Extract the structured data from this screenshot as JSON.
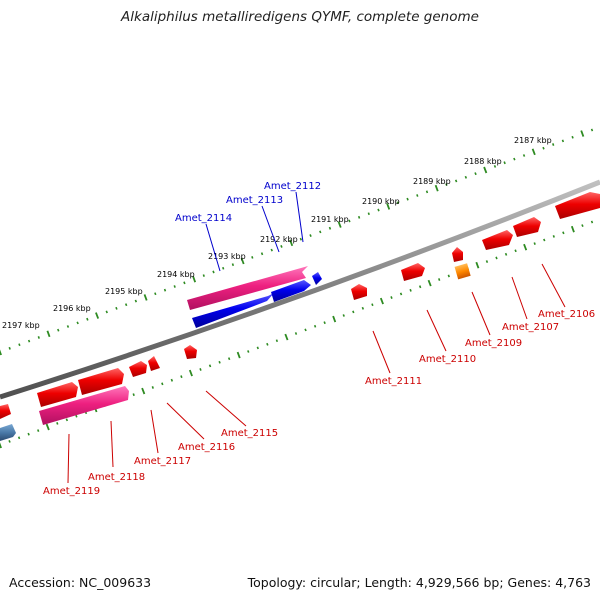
{
  "header": {
    "title": "Alkaliphilus metalliredigens QYMF, complete genome"
  },
  "footer": {
    "accession": "Accession: NC_009633",
    "summary": "Topology: circular; Length: 4,929,566 bp; Genes: 4,763"
  },
  "colors": {
    "backbone": "#808080",
    "tick": "#2e8b22",
    "forward_label": "#0000cc",
    "reverse_label": "#cc0000",
    "red": "#ee0000",
    "pink": "#ee2080",
    "blue": "#0000ee",
    "orange": "#ff8800",
    "steelblue": "#4a7aa8"
  },
  "ruler": {
    "major_ticks": [
      "2187 kbp",
      "2188 kbp",
      "2189 kbp",
      "2190 kbp",
      "2191 kbp",
      "2192 kbp",
      "2193 kbp",
      "2194 kbp",
      "2195 kbp",
      "2196 kbp",
      "2197 kbp"
    ]
  },
  "forward_genes": [
    {
      "label": "Amet_2112",
      "color": "pink"
    },
    {
      "label": "Amet_2113",
      "color": "blue"
    },
    {
      "label": "Amet_2114",
      "color": "blue"
    }
  ],
  "reverse_genes": [
    {
      "label": "Amet_2106",
      "color": "red"
    },
    {
      "label": "Amet_2107",
      "color": "red"
    },
    {
      "label": "Amet_2109",
      "color": "orange"
    },
    {
      "label": "Amet_2110",
      "color": "red"
    },
    {
      "label": "Amet_2111",
      "color": "red"
    },
    {
      "label": "Amet_2115",
      "color": "red"
    },
    {
      "label": "Amet_2116",
      "color": "red"
    },
    {
      "label": "Amet_2117",
      "color": "red"
    },
    {
      "label": "Amet_2118",
      "color": "pink"
    },
    {
      "label": "Amet_2119",
      "color": "red"
    }
  ]
}
